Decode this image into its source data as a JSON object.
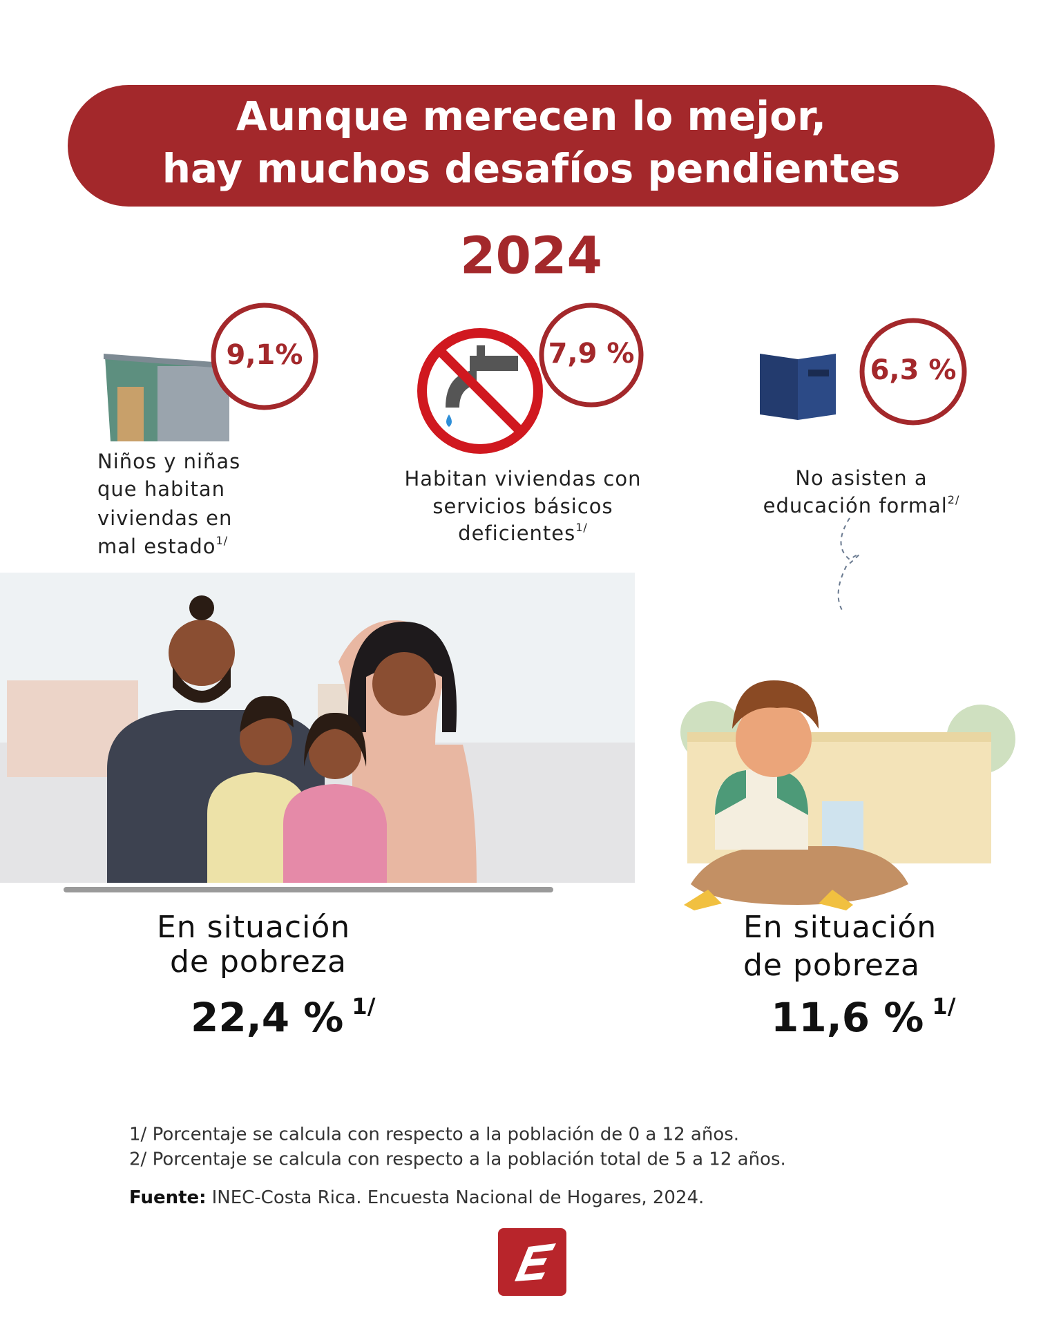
{
  "header": {
    "title_lines": [
      "Aunque merecen lo mejor,",
      "hay muchos desafíos pendientes"
    ]
  },
  "year": "2024",
  "indicators": [
    {
      "value": "9,1%",
      "label_lines": [
        "Niños y niñas",
        "que habitan",
        "viviendas en",
        "mal estado"
      ],
      "note": "1/"
    },
    {
      "value": "7,9 %",
      "label_lines": [
        "Habitan viviendas con",
        "servicios básicos",
        "deficientes"
      ],
      "note": "1/"
    },
    {
      "value": "6,3 %",
      "label_lines": [
        "No asisten a",
        "educación formal"
      ],
      "note": "2/"
    }
  ],
  "poverty": [
    {
      "label_lines": [
        "En situación",
        "de pobreza"
      ],
      "value": "22,4 %",
      "note": "1/"
    },
    {
      "label_lines": [
        "En situación",
        "de pobreza"
      ],
      "value": "11,6 %",
      "note": "1/"
    }
  ],
  "footnotes": [
    "1/ Porcentaje se calcula con respecto a la población de 0 a 12 años.",
    "2/ Porcentaje se calcula con respecto a la población total de 5 a 12 años."
  ],
  "source": {
    "label": "Fuente:",
    "text": "INEC-Costa Rica. Encuesta Nacional de Hogares, 2024."
  }
}
